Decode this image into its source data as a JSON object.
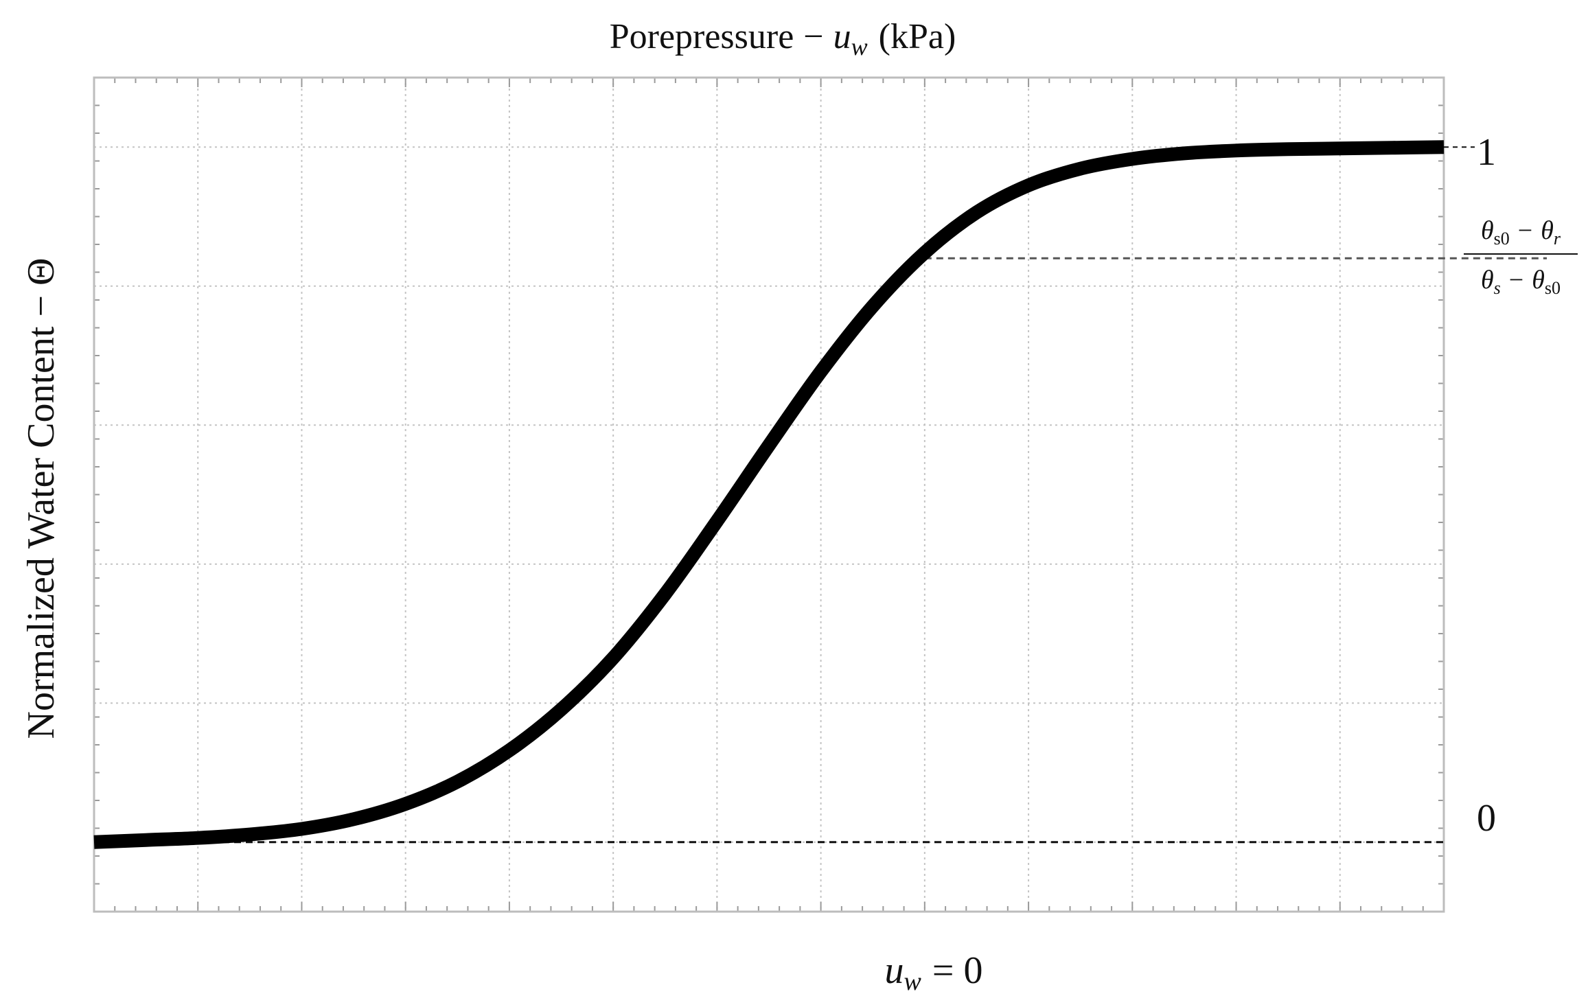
{
  "chart_data": {
    "type": "line",
    "title": "Porepressure",
    "title_separator": "−",
    "title_var": "u",
    "title_var_sub": "w",
    "title_unit": "(kPa)",
    "ylabel": "Normalized Water Content",
    "ylabel_separator": "−",
    "ylabel_symbol": "Θ",
    "xlabel_var": "u",
    "xlabel_var_sub": "w",
    "xlabel_rest": "= 0",
    "y_tick_top": "1",
    "y_tick_bottom": "0",
    "frac_num_a": "θ",
    "frac_num_a_sub": "s0",
    "frac_num_op": "−",
    "frac_num_b": "θ",
    "frac_num_b_sub": "r",
    "frac_den_a": "θ",
    "frac_den_a_sub": "s",
    "frac_den_op": "−",
    "frac_den_b": "θ",
    "frac_den_b_sub": "s0",
    "xlim": [
      -8,
      5
    ],
    "ylim": [
      -0.1,
      1.1
    ],
    "grid": true,
    "reference_level": 0.84,
    "reference_x": 0,
    "series": [
      {
        "x": [
          -8,
          -7.5,
          -7,
          -6.5,
          -6,
          -5.5,
          -5,
          -4.5,
          -4,
          -3.5,
          -3,
          -2.5,
          -2,
          -1.5,
          -1,
          -0.5,
          0,
          0.5,
          1,
          1.5,
          2,
          2.5,
          3,
          3.5,
          4,
          4.5,
          5
        ],
        "values": [
          0.0,
          0.003,
          0.006,
          0.011,
          0.019,
          0.033,
          0.055,
          0.087,
          0.132,
          0.191,
          0.265,
          0.357,
          0.462,
          0.571,
          0.677,
          0.771,
          0.848,
          0.906,
          0.945,
          0.969,
          0.983,
          0.991,
          0.995,
          0.997,
          0.998,
          0.999,
          1.0
        ]
      }
    ]
  }
}
